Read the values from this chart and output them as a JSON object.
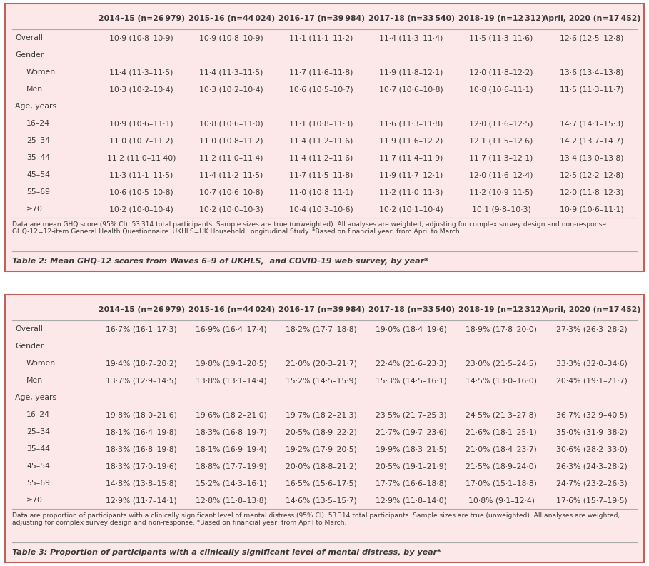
{
  "bg_color": "#fce8e8",
  "border_color": "#c0605a",
  "text_color": "#3a3a3a",
  "table1": {
    "title": "Table 2: Mean GHQ-12 scores from Waves 6–9 of UKHLS,  and COVID-19 web survey, by year*",
    "footnote": "Data are mean GHQ score (95% CI). 53 314 total participants. Sample sizes are true (unweighted). All analyses are weighted, adjusting for complex survey design and non-response. GHQ-12=12-item General Health Questionnaire. UKHLS=UK Household Longitudinal Study. *Based on financial year, from April to March.",
    "columns": [
      "",
      "2014–15 (n=26 979)",
      "2015–16 (n=44 024)",
      "2016–17 (n=39 984)",
      "2017–18 (n=33 540)",
      "2018–19 (n=12 312)",
      "April, 2020 (n=17 452)"
    ],
    "rows": [
      [
        "Overall",
        "10·9 (10·8–10·9)",
        "10·9 (10·8–10·9)",
        "11·1 (11·1–11·2)",
        "11·4 (11·3–11·4)",
        "11·5 (11·3–11·6)",
        "12·6 (12·5–12·8)"
      ],
      [
        "Gender",
        "",
        "",
        "",
        "",
        "",
        ""
      ],
      [
        "  Women",
        "11·4 (11·3–11·5)",
        "11·4 (11·3–11·5)",
        "11·7 (11·6–11·8)",
        "11·9 (11·8–12·1)",
        "12·0 (11·8–12·2)",
        "13·6 (13·4–13·8)"
      ],
      [
        "  Men",
        "10·3 (10·2–10·4)",
        "10·3 (10·2–10·4)",
        "10·6 (10·5–10·7)",
        "10·7 (10·6–10·8)",
        "10·8 (10·6–11·1)",
        "11·5 (11·3–11·7)"
      ],
      [
        "Age, years",
        "",
        "",
        "",
        "",
        "",
        ""
      ],
      [
        "  16–24",
        "10·9 (10·6–11·1)",
        "10·8 (10·6–11·0)",
        "11·1 (10·8–11·3)",
        "11·6 (11·3–11·8)",
        "12·0 (11·6–12·5)",
        "14·7 (14·1–15·3)"
      ],
      [
        "  25–34",
        "11·0 (10·7–11·2)",
        "11·0 (10·8–11·2)",
        "11·4 (11·2–11·6)",
        "11·9 (11·6–12·2)",
        "12·1 (11·5–12·6)",
        "14·2 (13·7–14·7)"
      ],
      [
        "  35–44",
        "11·2 (11·0–11·40)",
        "11·2 (11·0–11·4)",
        "11·4 (11·2–11·6)",
        "11·7 (11·4–11·9)",
        "11·7 (11·3–12·1)",
        "13·4 (13·0–13·8)"
      ],
      [
        "  45–54",
        "11·3 (11·1–11·5)",
        "11·4 (11·2–11·5)",
        "11·7 (11·5–11·8)",
        "11·9 (11·7–12·1)",
        "12·0 (11·6–12·4)",
        "12·5 (12·2–12·8)"
      ],
      [
        "  55–69",
        "10·6 (10·5–10·8)",
        "10·7 (10·6–10·8)",
        "11·0 (10·8–11·1)",
        "11·2 (11·0–11·3)",
        "11·2 (10·9–11·5)",
        "12·0 (11·8–12·3)"
      ],
      [
        "  ≥70",
        "10·2 (10·0–10·4)",
        "10·2 (10·0–10·3)",
        "10·4 (10·3–10·6)",
        "10·2 (10·1–10·4)",
        "10·1 (9·8–10·3)",
        "10·9 (10·6–11·1)"
      ]
    ],
    "section_rows": [
      1,
      4
    ]
  },
  "table2": {
    "title": "Table 3: Proportion of participants with a clinically significant level of mental distress, by year*",
    "footnote": "Data are proportion of participants with a clinically significant level of mental distress (95% CI). 53 314 total participants. Sample sizes are true (unweighted). All analyses are weighted, adjusting for complex survey design and non-response. *Based on financial year, from April to March.",
    "columns": [
      "",
      "2014–15 (n=26 979)",
      "2015–16 (n=44 024)",
      "2016–17 (n=39 984)",
      "2017–18 (n=33 540)",
      "2018–19 (n=12 312)",
      "April, 2020 (n=17 452)"
    ],
    "rows": [
      [
        "Overall",
        "16·7% (16·1–17·3)",
        "16·9% (16·4–17·4)",
        "18·2% (17·7–18·8)",
        "19·0% (18·4–19·6)",
        "18·9% (17·8–20·0)",
        "27·3% (26·3–28·2)"
      ],
      [
        "Gender",
        "",
        "",
        "",
        "",
        "",
        ""
      ],
      [
        "  Women",
        "19·4% (18·7–20·2)",
        "19·8% (19·1–20·5)",
        "21·0% (20·3–21·7)",
        "22·4% (21·6–23·3)",
        "23·0% (21·5–24·5)",
        "33·3% (32·0–34·6)"
      ],
      [
        "  Men",
        "13·7% (12·9–14·5)",
        "13·8% (13·1–14·4)",
        "15·2% (14·5–15·9)",
        "15·3% (14·5–16·1)",
        "14·5% (13·0–16·0)",
        "20·4% (19·1–21·7)"
      ],
      [
        "Age, years",
        "",
        "",
        "",
        "",
        "",
        ""
      ],
      [
        "  16–24",
        "19·8% (18·0–21·6)",
        "19·6% (18·2–21·0)",
        "19·7% (18·2–21·3)",
        "23·5% (21·7–25·3)",
        "24·5% (21·3–27·8)",
        "36·7% (32·9–40·5)"
      ],
      [
        "  25–34",
        "18·1% (16·4–19·8)",
        "18·3% (16·8–19·7)",
        "20·5% (18·9–22·2)",
        "21·7% (19·7–23·6)",
        "21·6% (18·1–25·1)",
        "35·0% (31·9–38·2)"
      ],
      [
        "  35–44",
        "18·3% (16·8–19·8)",
        "18·1% (16·9–19·4)",
        "19·2% (17·9–20·5)",
        "19·9% (18·3–21·5)",
        "21·0% (18·4–23·7)",
        "30·6% (28·2–33·0)"
      ],
      [
        "  45–54",
        "18·3% (17·0–19·6)",
        "18·8% (17·7–19·9)",
        "20·0% (18·8–21·2)",
        "20·5% (19·1–21·9)",
        "21·5% (18·9–24·0)",
        "26·3% (24·3–28·2)"
      ],
      [
        "  55–69",
        "14·8% (13·8–15·8)",
        "15·2% (14·3–16·1)",
        "16·5% (15·6–17·5)",
        "17·7% (16·6–18·8)",
        "17·0% (15·1–18·8)",
        "24·7% (23·2–26·3)"
      ],
      [
        "  ≥70",
        "12·9% (11·7–14·1)",
        "12·8% (11·8–13·8)",
        "14·6% (13·5–15·7)",
        "12·9% (11·8–14·0)",
        "10·8% (9·1–12·4)",
        "17·6% (15·7–19·5)"
      ]
    ],
    "section_rows": [
      1,
      4
    ]
  },
  "header_fontsize": 7.8,
  "data_fontsize": 7.8,
  "title_fontsize": 8.0,
  "footnote_fontsize": 6.6
}
